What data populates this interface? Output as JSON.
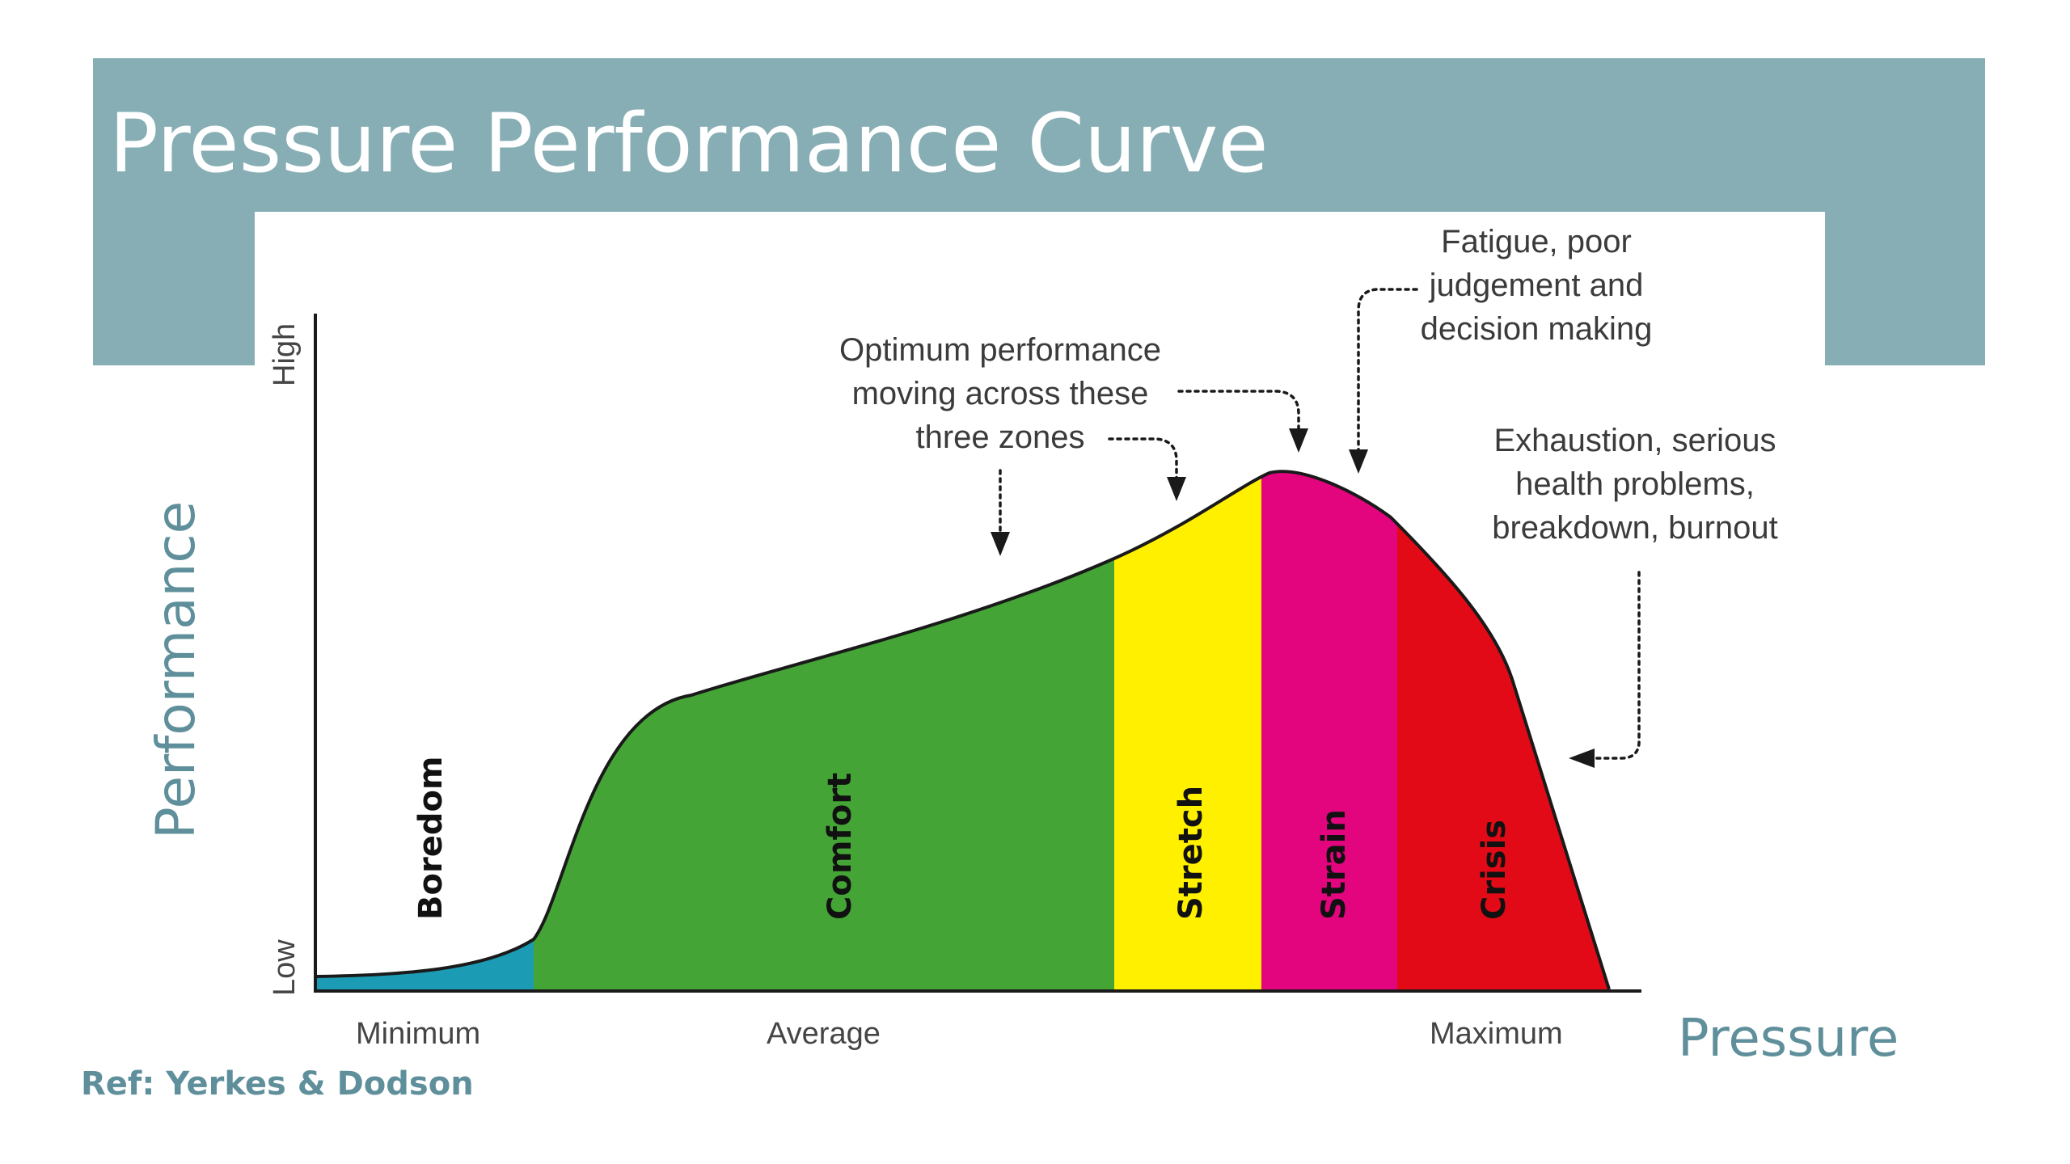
{
  "title": "Pressure Performance Curve",
  "colors": {
    "header_band": "#86aeb4",
    "axis_title": "#5f8f9b",
    "boredom": "#1c9bb4",
    "comfort": "#44a536",
    "stretch": "#fff000",
    "strain": "#e2057e",
    "crisis": "#e20a16"
  },
  "axes": {
    "y_title": "Performance",
    "y_high": "High",
    "y_low": "Low",
    "x_title": "Pressure",
    "x_ticks": [
      "Minimum",
      "Average",
      "Maximum"
    ]
  },
  "zones": [
    {
      "label": "Boredom",
      "color": "#1c9bb4"
    },
    {
      "label": "Comfort",
      "color": "#44a536"
    },
    {
      "label": "Stretch",
      "color": "#fff000"
    },
    {
      "label": "Strain",
      "color": "#e2057e"
    },
    {
      "label": "Crisis",
      "color": "#e20a16"
    }
  ],
  "annotations": {
    "optimum": [
      "Optimum performance",
      "moving across these",
      "three zones"
    ],
    "fatigue": [
      "Fatigue, poor",
      "judgement and",
      "decision making"
    ],
    "exhaustion": [
      "Exhaustion, serious",
      "health problems,",
      "breakdown, burnout"
    ]
  },
  "reference": "Ref: Yerkes & Dodson"
}
